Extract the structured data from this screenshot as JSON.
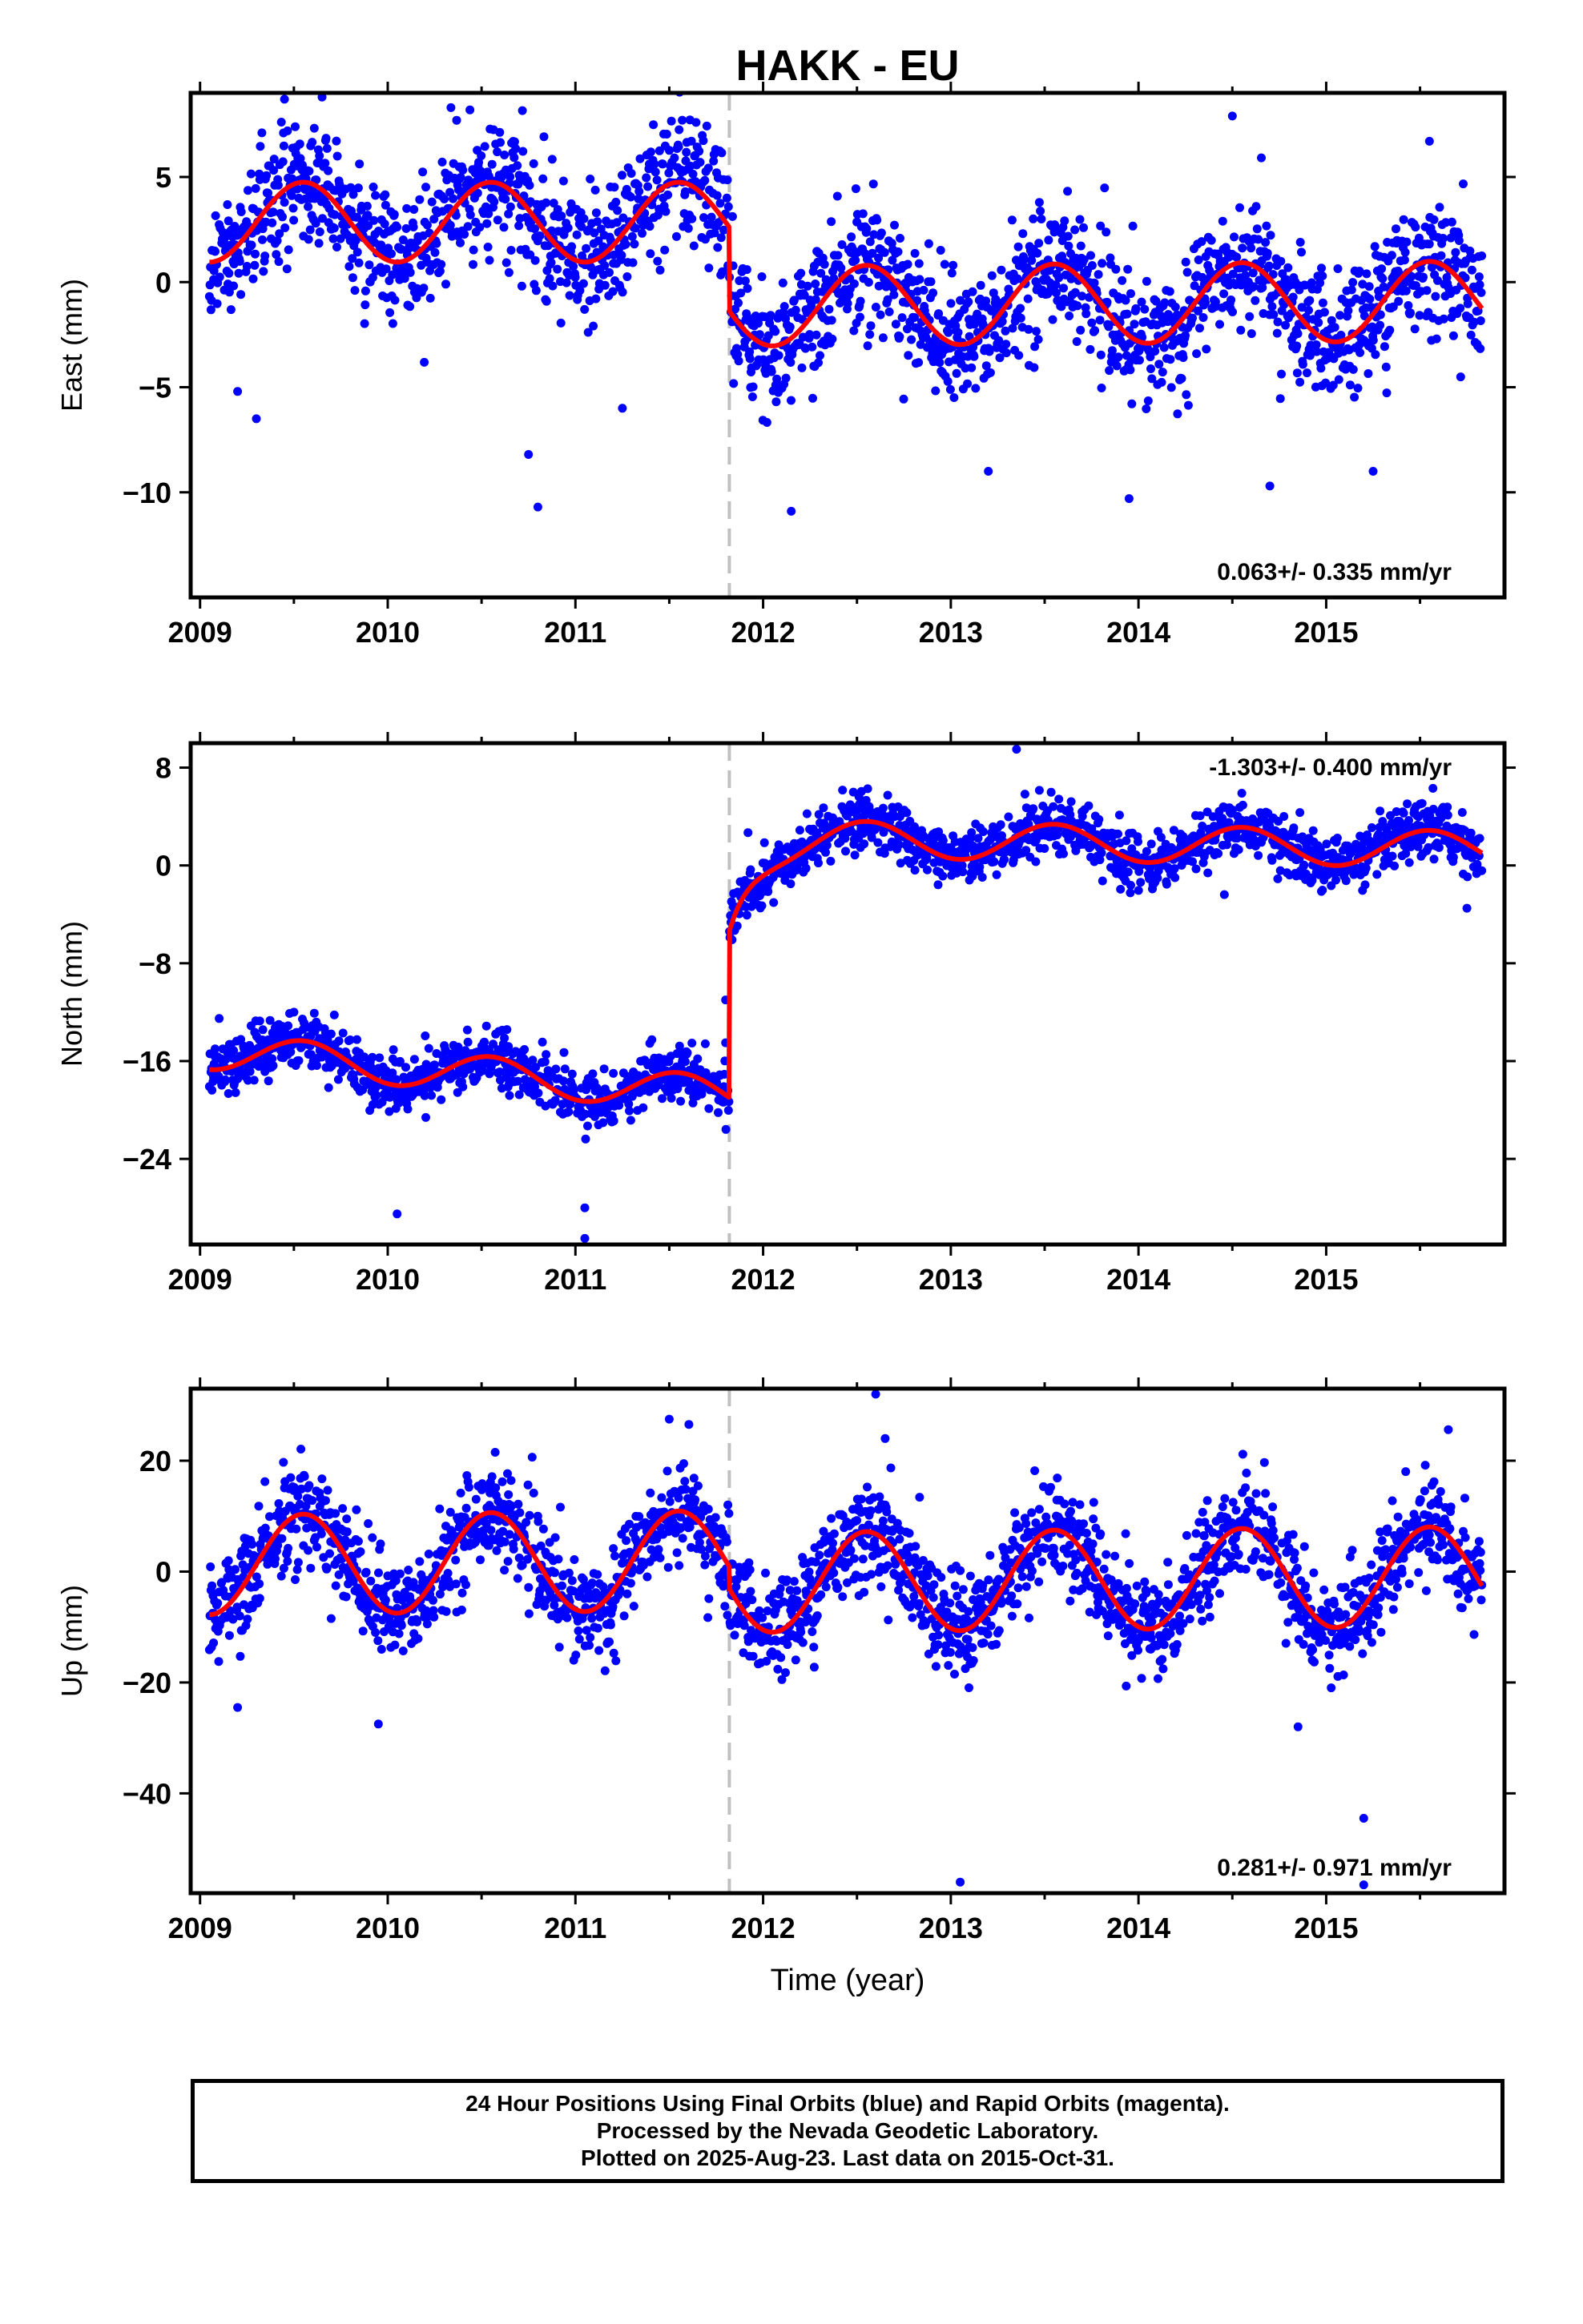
{
  "title": "HAKK - EU",
  "x_label": "Time (year)",
  "footer": {
    "line1": "24 Hour Positions Using Final Orbits (blue) and Rapid Orbits (magenta).",
    "line2": "Processed by the Nevada Geodetic Laboratory.",
    "line3": "Plotted on 2025-Aug-23. Last data on 2015-Oct-31."
  },
  "colors": {
    "points": "#0000ff",
    "fit": "#ff0000",
    "offset_line": "#c0c0c0",
    "axes": "#000000"
  },
  "chart_data": [
    {
      "type": "scatter",
      "panel": "east",
      "ylabel": "East (mm)",
      "xlim": [
        2008.95,
        2015.95
      ],
      "ylim": [
        -15,
        9
      ],
      "xticks": [
        2009,
        2010,
        2011,
        2012,
        2013,
        2014,
        2015
      ],
      "xtick_labels": [
        "2009",
        "2010",
        "2011",
        "2012",
        "2013",
        "2014",
        "2015"
      ],
      "yticks": [
        5,
        0,
        -5,
        -10
      ],
      "ytick_labels": [
        "5",
        "0",
        "−5",
        "−10"
      ],
      "rate_label": "0.063+/- 0.335 mm/yr",
      "rate_position": "bottom-right",
      "offset_epoch": 2011.82,
      "model": {
        "pre": {
          "base": 2.85,
          "slope": 0.0,
          "annual": -1.9,
          "semiannual": 0.0
        },
        "post": {
          "base": -1.15,
          "slope": 0.063,
          "annual": -1.9,
          "semiannual": 0.0
        }
      },
      "noise_sigma": 1.5,
      "outliers": [
        [
          2009.3,
          -6.5
        ],
        [
          2009.2,
          -5.2
        ],
        [
          2010.8,
          -10.7
        ],
        [
          2010.75,
          -8.2
        ],
        [
          2011.25,
          -6.0
        ],
        [
          2012.15,
          -10.9
        ],
        [
          2013.2,
          -9.0
        ],
        [
          2013.95,
          -10.3
        ],
        [
          2014.7,
          -9.7
        ],
        [
          2015.25,
          -9.0
        ],
        [
          2014.5,
          7.9
        ],
        [
          2015.55,
          6.7
        ],
        [
          2009.45,
          8.7
        ],
        [
          2009.65,
          8.8
        ]
      ]
    },
    {
      "type": "scatter",
      "panel": "north",
      "ylabel": "North (mm)",
      "xlim": [
        2008.95,
        2015.95
      ],
      "ylim": [
        -31,
        10
      ],
      "xticks": [
        2009,
        2010,
        2011,
        2012,
        2013,
        2014,
        2015
      ],
      "xtick_labels": [
        "2009",
        "2010",
        "2011",
        "2012",
        "2013",
        "2014",
        "2015"
      ],
      "yticks": [
        8,
        0,
        -8,
        -16,
        -24
      ],
      "ytick_labels": [
        "8",
        "0",
        "−8",
        "−16",
        "−24"
      ],
      "rate_label": "-1.303+/- 0.400 mm/yr",
      "rate_position": "top-right",
      "offset_epoch": 2011.82,
      "model": {
        "pre": {
          "base": -18.8,
          "slope": -1.303,
          "annual": -1.5,
          "semiannual": 0.0
        },
        "post": {
          "base": 2.3,
          "slope": -0.25,
          "annual": -1.5,
          "semiannual": 0.0
        },
        "transient": {
          "amplitude": -7.5,
          "tau": 0.12
        }
      },
      "noise_sigma": 1.1,
      "outliers": [
        [
          2011.05,
          -30.5
        ],
        [
          2011.05,
          -28.0
        ],
        [
          2010.05,
          -28.5
        ],
        [
          2015.75,
          -3.5
        ],
        [
          2013.35,
          9.5
        ],
        [
          2011.8,
          -14.5
        ],
        [
          2011.8,
          -11.0
        ],
        [
          2009.5,
          -12.0
        ]
      ]
    },
    {
      "type": "scatter",
      "panel": "up",
      "ylabel": "Up (mm)",
      "xlim": [
        2008.95,
        2015.95
      ],
      "ylim": [
        -58,
        33
      ],
      "xticks": [
        2009,
        2010,
        2011,
        2012,
        2013,
        2014,
        2015
      ],
      "xtick_labels": [
        "2009",
        "2010",
        "2011",
        "2012",
        "2013",
        "2014",
        "2015"
      ],
      "yticks": [
        20,
        0,
        -20,
        -40
      ],
      "ytick_labels": [
        "20",
        "0",
        "−20",
        "−40"
      ],
      "rate_label": "0.281+/- 0.971 mm/yr",
      "rate_position": "bottom-right",
      "offset_epoch": 2011.82,
      "model": {
        "pre": {
          "base": 2.0,
          "slope": 0.281,
          "annual": -9.0,
          "semiannual": 0.0
        },
        "post": {
          "base": -2.0,
          "slope": 0.281,
          "annual": -9.0,
          "semiannual": 0.0
        }
      },
      "noise_sigma": 4.5,
      "outliers": [
        [
          2013.05,
          -56.0
        ],
        [
          2015.2,
          -56.5
        ],
        [
          2015.2,
          -44.5
        ],
        [
          2012.6,
          32.0
        ],
        [
          2012.65,
          24.0
        ],
        [
          2011.5,
          27.5
        ],
        [
          2009.95,
          -27.5
        ],
        [
          2014.85,
          -28.0
        ],
        [
          2009.2,
          -24.5
        ]
      ]
    }
  ]
}
